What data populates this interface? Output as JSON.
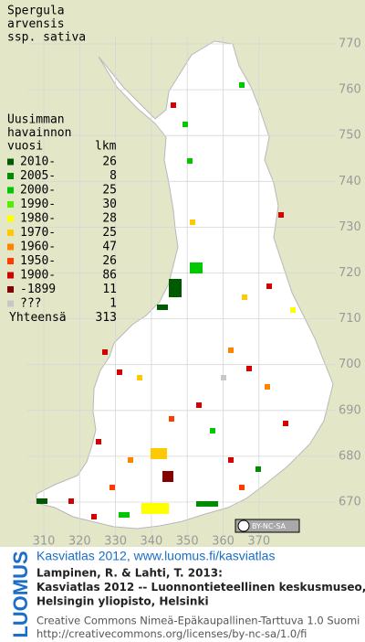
{
  "title": [
    "Spergula",
    "arvensis",
    "ssp. sativa"
  ],
  "legend": {
    "heading": [
      "Uusimman",
      "havainnon",
      "vuosi"
    ],
    "count_header": "lkm",
    "items": [
      {
        "label": "2010-",
        "count": "26",
        "color": "#005a00"
      },
      {
        "label": "2005-",
        "count": "8",
        "color": "#008c00"
      },
      {
        "label": "2000-",
        "count": "25",
        "color": "#00c800"
      },
      {
        "label": "1990-",
        "count": "30",
        "color": "#50f000"
      },
      {
        "label": "1980-",
        "count": "28",
        "color": "#ffff00"
      },
      {
        "label": "1970-",
        "count": "25",
        "color": "#ffc800"
      },
      {
        "label": "1960-",
        "count": "47",
        "color": "#ff8200"
      },
      {
        "label": "1950-",
        "count": "26",
        "color": "#ff3c00"
      },
      {
        "label": "1900-",
        "count": "86",
        "color": "#d20000"
      },
      {
        "label": "-1899",
        "count": "11",
        "color": "#820000"
      },
      {
        "label": "???",
        "count": "1",
        "color": "#c8c8c8"
      }
    ],
    "total_label": "Yhteensä",
    "total": "313"
  },
  "x_labels": [
    "310",
    "320",
    "330",
    "340",
    "350",
    "360",
    "370"
  ],
  "y_labels": [
    "770",
    "760",
    "750",
    "740",
    "730",
    "720",
    "710",
    "700",
    "690",
    "680",
    "670"
  ],
  "license_badge": "BY-NC-SA",
  "footer": {
    "logo": "LUOMUS",
    "link": "Kasviatlas 2012, www.luomus.fi/kasviatlas",
    "citation": [
      "Lampinen, R. & Lahti, T. 2013:",
      "Kasviatlas 2012 -- Luonnontieteellinen keskusmuseo,",
      "Helsingin yliopisto, Helsinki"
    ],
    "license": [
      "Creative Commons Nimeä-Epäkaupallinen-Tarttuva 1.0 Suomi",
      "http://creativecommons.org/licenses/by-nc-sa/1.0/fi"
    ]
  }
}
